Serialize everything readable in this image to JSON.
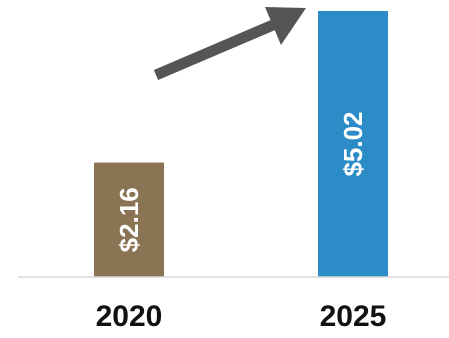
{
  "chart_data": {
    "type": "bar",
    "categories": [
      "2020",
      "2025"
    ],
    "values": [
      2.16,
      5.02
    ],
    "value_labels": [
      "$2.16",
      "$5.02"
    ],
    "bar_colors": [
      "#8B7453",
      "#2C8CC7"
    ],
    "ylim": [
      0,
      5.02
    ],
    "grid": false,
    "legend": "none",
    "annotation": "arrow pointing up from 2020 bar toward 2025 bar",
    "arrow_color": "#555555",
    "axis_color": "#d9d9d9"
  }
}
